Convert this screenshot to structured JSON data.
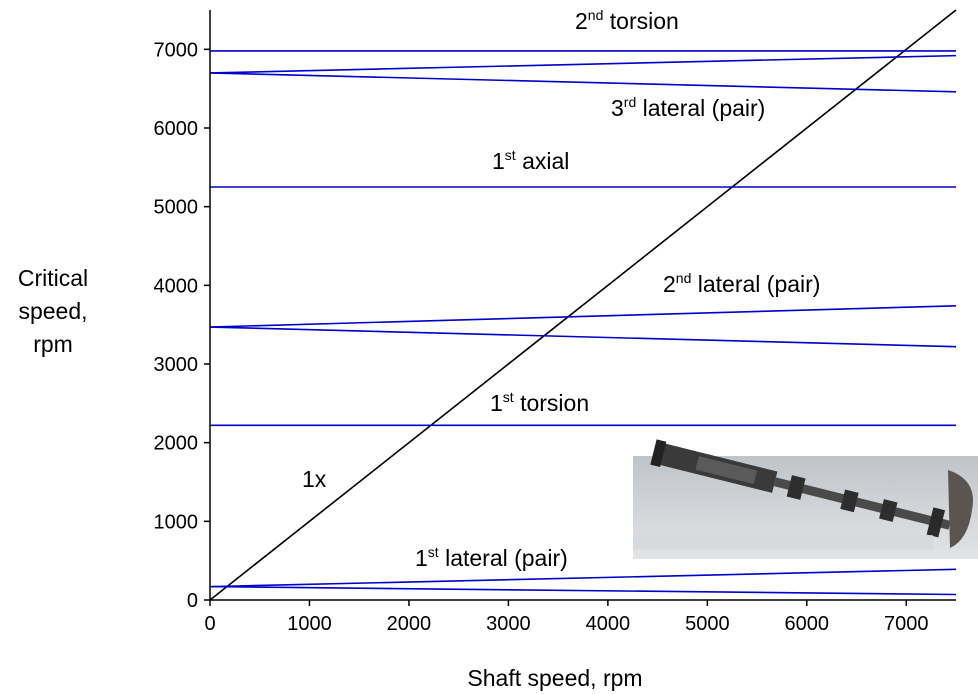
{
  "chart_data": {
    "type": "line",
    "x": [
      0,
      7500
    ],
    "series": [
      {
        "color": "#000000",
        "values": [
          0,
          7500
        ]
      },
      {
        "color": "#0000cc",
        "values": [
          6980,
          6980
        ]
      },
      {
        "color": "#0000cc",
        "values": [
          6700,
          6920
        ]
      },
      {
        "color": "#0000cc",
        "values": [
          6700,
          6460
        ]
      },
      {
        "color": "#0000cc",
        "values": [
          5250,
          5250
        ]
      },
      {
        "color": "#0000cc",
        "values": [
          3470,
          3740
        ]
      },
      {
        "color": "#0000cc",
        "values": [
          3470,
          3220
        ]
      },
      {
        "color": "#0000cc",
        "values": [
          2220,
          2220
        ]
      },
      {
        "color": "#0000cc",
        "values": [
          170,
          390
        ]
      },
      {
        "color": "#0000cc",
        "values": [
          170,
          70
        ]
      }
    ],
    "xlim": [
      0,
      7500
    ],
    "ylim": [
      0,
      7500
    ],
    "xticks": [
      0,
      1000,
      2000,
      3000,
      4000,
      5000,
      6000,
      7000
    ],
    "yticks": [
      0,
      1000,
      2000,
      3000,
      4000,
      5000,
      6000,
      7000
    ],
    "xlabel": "Shaft speed, rpm",
    "ylabel": [
      "Critical",
      "speed,",
      "rpm"
    ],
    "annotations": [
      {
        "text": "2",
        "sup": "nd",
        "after": " torsion"
      },
      {
        "text": "3",
        "sup": "rd",
        "after": " lateral (pair)"
      },
      {
        "text": "1",
        "sup": "st",
        "after": " axial"
      },
      {
        "text": "2",
        "sup": "nd",
        "after": " lateral (pair)"
      },
      {
        "text": "1",
        "sup": "st",
        "after": " torsion"
      },
      {
        "text": "1x"
      },
      {
        "text": "1",
        "sup": "st",
        "after": " lateral (pair)"
      }
    ]
  }
}
